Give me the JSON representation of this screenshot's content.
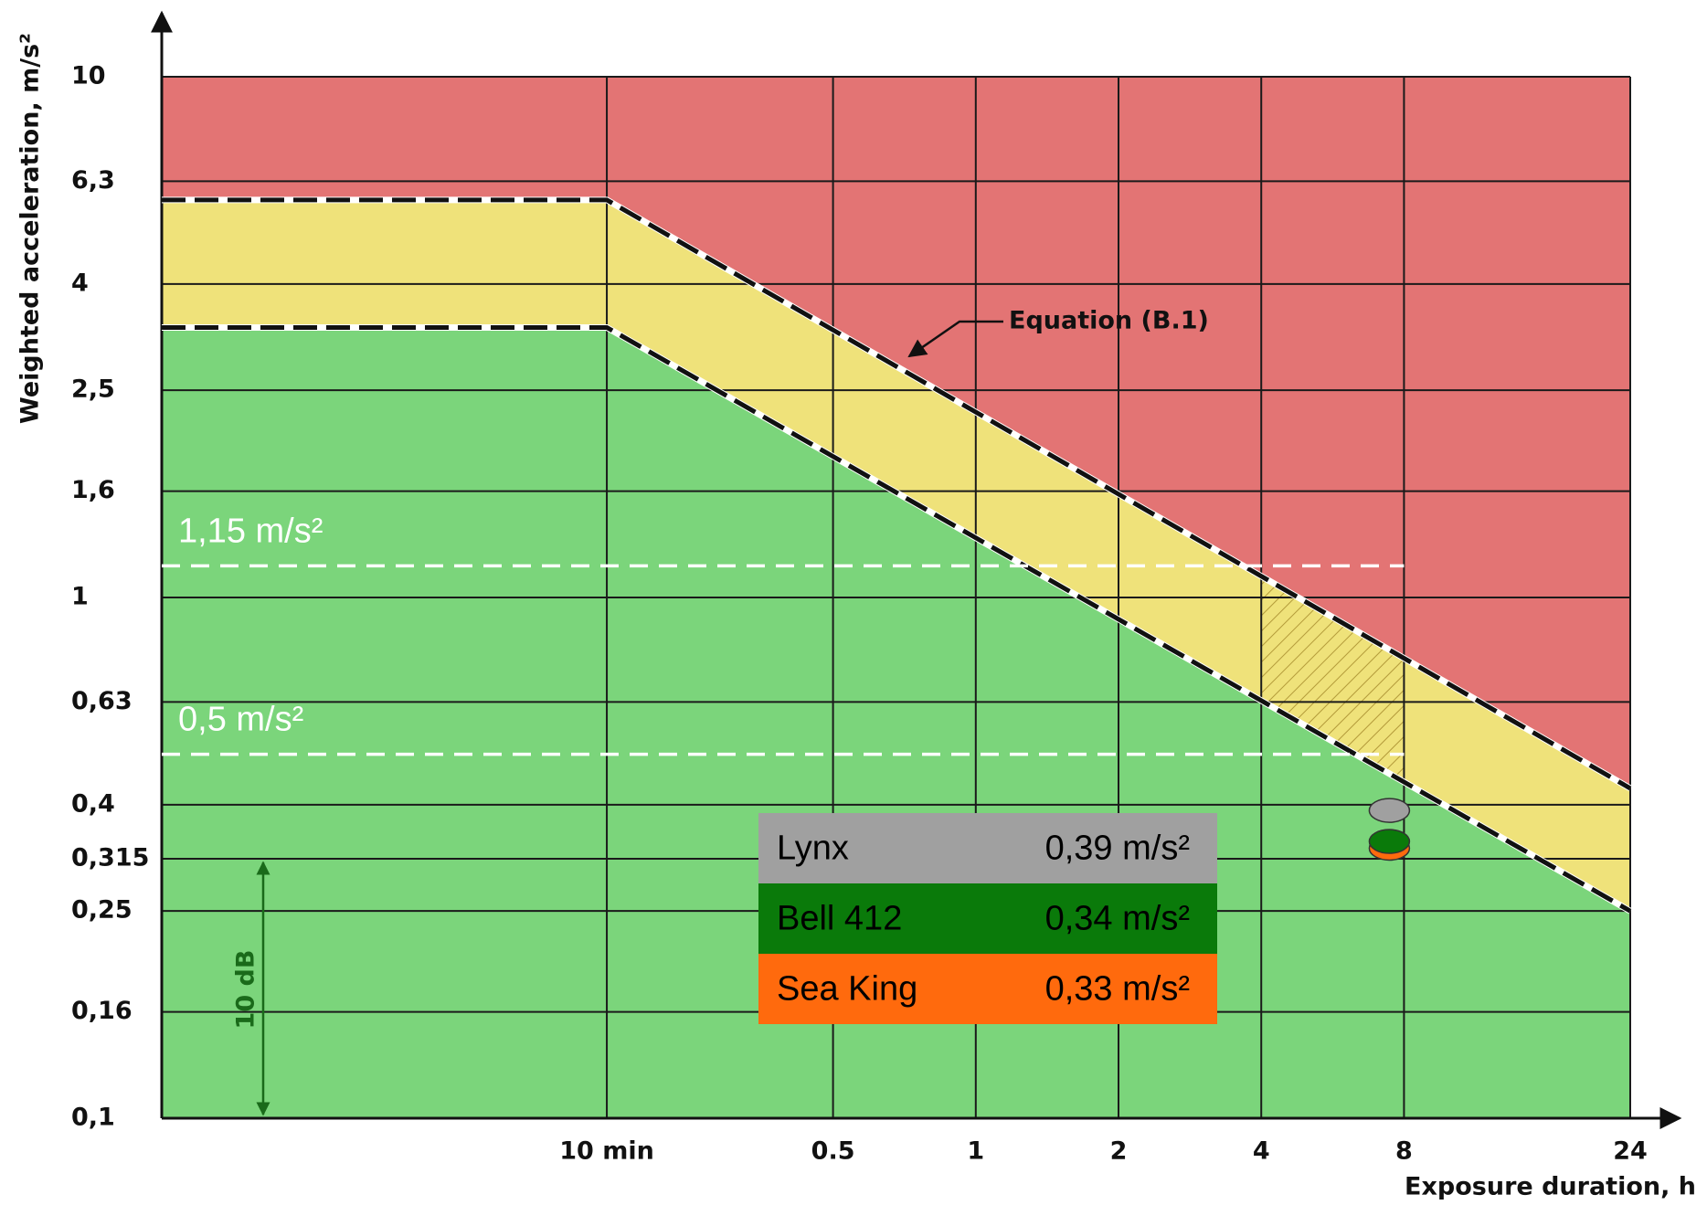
{
  "chart_data": {
    "type": "zones",
    "x_label": "Exposure duration, h",
    "y_label": "Weighted acceleration, m/s²",
    "log_x": true,
    "log_y": true,
    "grid": true,
    "xlim": [
      0.0192,
      24
    ],
    "ylim": [
      0.1,
      10
    ],
    "xticks": [
      {
        "value": 0.1667,
        "label": "10 min"
      },
      0.5,
      1,
      2,
      4,
      8,
      24
    ],
    "yticks": [
      {
        "value": 0.1,
        "label": "0,1"
      },
      {
        "value": 0.16,
        "label": "0,16"
      },
      {
        "value": 0.25,
        "label": "0,25"
      },
      {
        "value": 0.315,
        "label": "0,315"
      },
      {
        "value": 0.4,
        "label": "0,4"
      },
      {
        "value": 0.63,
        "label": "0,63"
      },
      1,
      {
        "value": 1.6,
        "label": "1,6"
      },
      {
        "value": 2.5,
        "label": "2,5"
      },
      4,
      {
        "value": 6.3,
        "label": "6,3"
      },
      10
    ],
    "zone_colors": {
      "above": "#e37474",
      "between": "#efe27a",
      "below": "#7bd57b"
    },
    "boundaries": [
      {
        "name": "upper",
        "x": [
          0.1667,
          24
        ],
        "values": [
          5.8,
          0.43
        ]
      },
      {
        "name": "lower",
        "x": [
          0.1667,
          24
        ],
        "values": [
          3.3,
          0.25
        ]
      }
    ],
    "hatch_x": [
      4,
      8
    ],
    "reference_lines": [
      {
        "label": "1,15 m/s²",
        "value": 1.15,
        "x_end": 8
      },
      {
        "label": "0,5 m/s²",
        "value": 0.5,
        "x_end": 8
      }
    ],
    "annotations": {
      "equation": "Equation (B.1)",
      "range": "10 dB"
    },
    "series": [
      {
        "name": "Lynx",
        "color": "#a0a0a0",
        "x": [
          8
        ],
        "values": [
          0.39
        ],
        "value_labels": [
          "0,39 m/s²"
        ]
      },
      {
        "name": "Bell 412",
        "color": "#0a7a0a",
        "x": [
          8
        ],
        "values": [
          0.34
        ],
        "value_labels": [
          "0,34 m/s²"
        ]
      },
      {
        "name": "Sea King",
        "color": "#ff6a0d",
        "x": [
          8
        ],
        "values": [
          0.33
        ],
        "value_labels": [
          "0,33 m/s²"
        ]
      }
    ]
  }
}
